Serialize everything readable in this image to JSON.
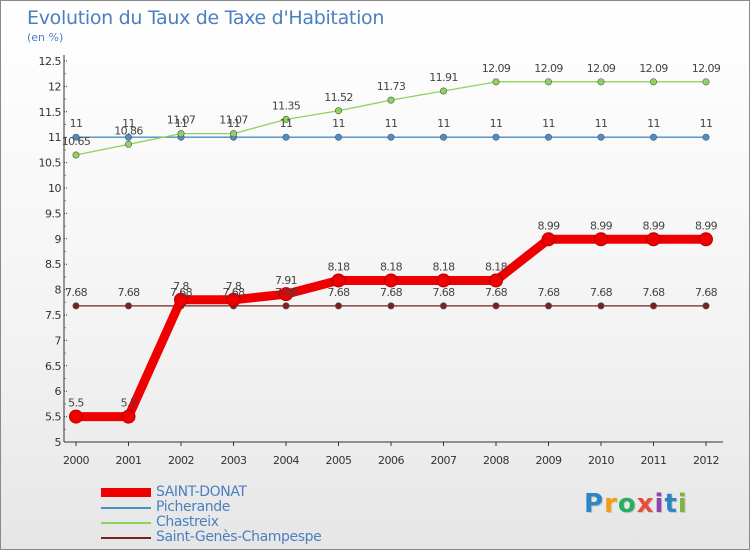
{
  "title": "Evolution du Taux de Taxe d'Habitation",
  "unit_label": "(en %)",
  "logo": {
    "letters": [
      {
        "ch": "P",
        "color": "#2e86c1"
      },
      {
        "ch": "r",
        "color": "#f39c12"
      },
      {
        "ch": "o",
        "color": "#27ae60"
      },
      {
        "ch": "x",
        "color": "#e74c3c"
      },
      {
        "ch": "i",
        "color": "#8e44ad"
      },
      {
        "ch": "t",
        "color": "#2e86c1"
      },
      {
        "ch": "i",
        "color": "#7cb342"
      }
    ]
  },
  "chart_data": {
    "type": "line",
    "title": "Evolution du Taux de Taxe d'Habitation",
    "ylabel": "(en %)",
    "xlabel": "",
    "x": [
      "2000",
      "2001",
      "2002",
      "2003",
      "2004",
      "2005",
      "2006",
      "2007",
      "2008",
      "2009",
      "2010",
      "2011",
      "2012"
    ],
    "ylim": [
      5,
      12.5
    ],
    "yticks": [
      "5",
      "5.5",
      "6",
      "6.5",
      "7",
      "7.5",
      "8",
      "8.5",
      "9",
      "9.5",
      "10",
      "10.5",
      "11",
      "11.5",
      "12",
      "12.5"
    ],
    "grid": false,
    "legend_position": "bottom-left",
    "series": [
      {
        "name": "SAINT-DONAT",
        "color": "#ee0000",
        "emphasis": true,
        "values": [
          5.5,
          5.5,
          7.8,
          7.8,
          7.91,
          8.18,
          8.18,
          8.18,
          8.18,
          8.99,
          8.99,
          8.99,
          8.99
        ],
        "labels": [
          "5.5",
          "5.5",
          "7.8",
          "7.8",
          "7.91",
          "8.18",
          "8.18",
          "8.18",
          "8.18",
          "8.99",
          "8.99",
          "8.99",
          "8.99"
        ]
      },
      {
        "name": "Picherande",
        "color": "#4a8fc8",
        "emphasis": false,
        "values": [
          11,
          11,
          11,
          11,
          11,
          11,
          11,
          11,
          11,
          11,
          11,
          11,
          11
        ],
        "labels": [
          "11",
          "11",
          "11",
          "11",
          "11",
          "11",
          "11",
          "11",
          "11",
          "11",
          "11",
          "11",
          "11"
        ]
      },
      {
        "name": "Chastreix",
        "color": "#8fd45a",
        "emphasis": false,
        "values": [
          10.65,
          10.86,
          11.07,
          11.07,
          11.35,
          11.52,
          11.73,
          11.91,
          12.09,
          12.09,
          12.09,
          12.09,
          12.09
        ],
        "labels": [
          "10.65",
          "10.86",
          "11.07",
          "11.07",
          "11.35",
          "11.52",
          "11.73",
          "11.91",
          "12.09",
          "12.09",
          "12.09",
          "12.09",
          "12.09"
        ]
      },
      {
        "name": "Saint-Genès-Champespe",
        "color": "#7a2020",
        "emphasis": false,
        "values": [
          7.68,
          7.68,
          7.68,
          7.68,
          7.68,
          7.68,
          7.68,
          7.68,
          7.68,
          7.68,
          7.68,
          7.68,
          7.68
        ],
        "labels": [
          "7.68",
          "7.68",
          "7.68",
          "7.68",
          "7.68",
          "7.68",
          "7.68",
          "7.68",
          "7.68",
          "7.68",
          "7.68",
          "7.68",
          "7.68"
        ]
      }
    ]
  }
}
